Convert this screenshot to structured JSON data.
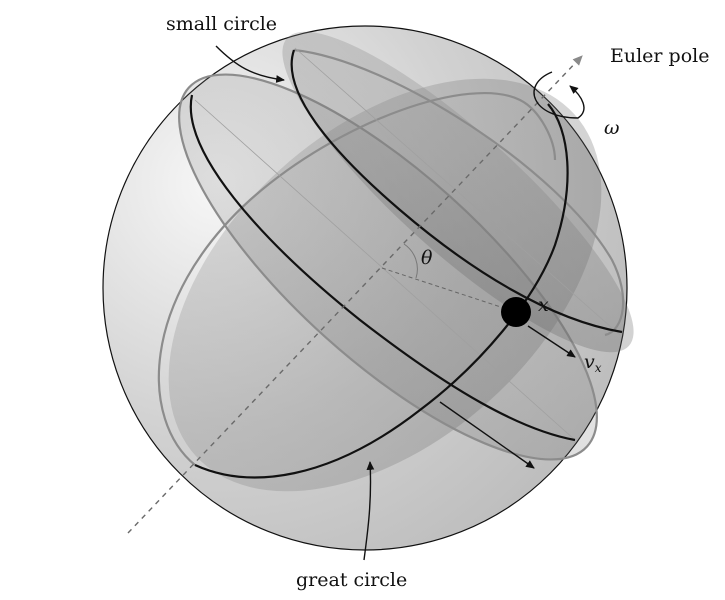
{
  "labels": {
    "small_circle": "small circle",
    "great_circle": "great circle",
    "euler_pole": "Euler pole",
    "omega": "ω",
    "theta": "θ",
    "x_point": "x",
    "velocity_main": "v",
    "velocity_sub": "x"
  },
  "colors": {
    "sphere_light": "#f7f7f7",
    "sphere_dark": "#a6a6a6",
    "plane_fill": "#7a7a7a",
    "outline": "#111111",
    "faint_outline": "#8c8c8c",
    "axis_arrow": "#8a8a8a"
  }
}
